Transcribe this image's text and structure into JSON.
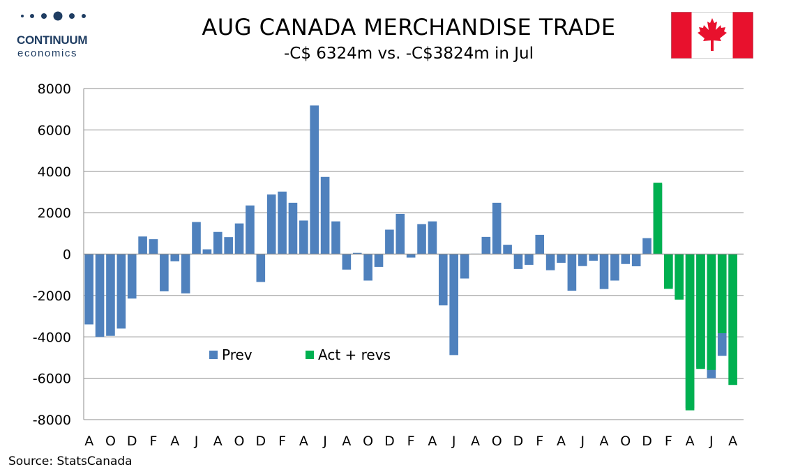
{
  "header": {
    "brand_name": "CONTINUUM",
    "brand_sub": "economics",
    "title": "AUG CANADA MERCHANDISE TRADE",
    "subtitle": "-C$ 6324m vs. -C$3824m in Jul",
    "flag_icon": "canada-flag-icon"
  },
  "footer": {
    "source": "Source: StatsCanada"
  },
  "colors": {
    "prev": "#4f81bd",
    "act": "#00b050",
    "brand": "#1f3d62",
    "flag_red": "#e8112d"
  },
  "chart_data": {
    "type": "bar",
    "title": "AUG CANADA MERCHANDISE TRADE",
    "xlabel": "",
    "ylabel": "",
    "ylim": [
      -8000,
      8000
    ],
    "yticks": [
      8000,
      6000,
      4000,
      2000,
      0,
      -2000,
      -4000,
      -6000,
      -8000
    ],
    "grid": true,
    "legend_position": "lower-middle",
    "x_tick_labels": [
      "A",
      "O",
      "D",
      "F",
      "A",
      "J",
      "A",
      "O",
      "D",
      "F",
      "A",
      "J",
      "A",
      "O",
      "D",
      "F",
      "A",
      "J",
      "A",
      "O",
      "D",
      "F",
      "A",
      "J",
      "A",
      "O",
      "D",
      "F",
      "A",
      "J",
      "A"
    ],
    "x_tick_every": 2,
    "series": [
      {
        "name": "Prev",
        "values": [
          -3400,
          -4000,
          -3950,
          -3600,
          -2150,
          850,
          720,
          -1800,
          -350,
          -1900,
          1550,
          230,
          1070,
          820,
          1480,
          2350,
          -1350,
          2880,
          3020,
          2480,
          1620,
          7180,
          3730,
          1580,
          -750,
          60,
          -1280,
          -620,
          1180,
          1940,
          -170,
          1450,
          1580,
          -2480,
          -4880,
          -1180,
          20,
          830,
          2480,
          450,
          -720,
          -520,
          930,
          -780,
          -420,
          -1770,
          -580,
          -320,
          -1690,
          -1280,
          -480,
          -590,
          770,
          3380,
          -1600,
          -2150,
          -7450,
          -5470,
          -6000,
          -4920,
          -3824
        ]
      },
      {
        "name": "Act + revs",
        "values": [
          null,
          null,
          null,
          null,
          null,
          null,
          null,
          null,
          null,
          null,
          null,
          null,
          null,
          null,
          null,
          null,
          null,
          null,
          null,
          null,
          null,
          null,
          null,
          null,
          null,
          null,
          null,
          null,
          null,
          null,
          null,
          null,
          null,
          null,
          null,
          null,
          null,
          null,
          null,
          null,
          null,
          null,
          null,
          null,
          null,
          null,
          null,
          null,
          null,
          null,
          null,
          null,
          null,
          3450,
          -1680,
          -2200,
          -7550,
          -5550,
          -5600,
          -3824,
          -6324
        ]
      }
    ]
  }
}
